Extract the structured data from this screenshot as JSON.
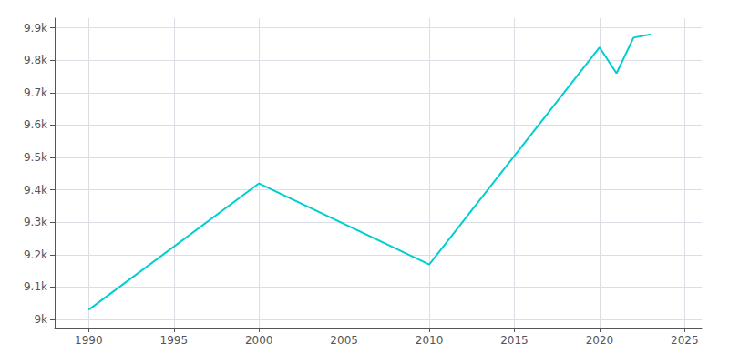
{
  "chart_data": {
    "type": "line",
    "x": [
      1990,
      2000,
      2010,
      2020,
      2021,
      2022,
      2023
    ],
    "values": [
      9030,
      9420,
      9170,
      9840,
      9760,
      9870,
      9880
    ],
    "color": "#00CED1",
    "xlim": [
      1988,
      2026
    ],
    "ylim": [
      8975,
      9930
    ],
    "xticks": [
      1990,
      1995,
      2000,
      2005,
      2010,
      2015,
      2020,
      2025
    ],
    "yticks": [
      {
        "value": 9000,
        "label": "9k"
      },
      {
        "value": 9100,
        "label": "9.1k"
      },
      {
        "value": 9200,
        "label": "9.2k"
      },
      {
        "value": 9300,
        "label": "9.3k"
      },
      {
        "value": 9400,
        "label": "9.4k"
      },
      {
        "value": 9500,
        "label": "9.5k"
      },
      {
        "value": 9600,
        "label": "9.6k"
      },
      {
        "value": 9700,
        "label": "9.7k"
      },
      {
        "value": 9800,
        "label": "9.8k"
      },
      {
        "value": 9900,
        "label": "9.9k"
      }
    ],
    "grid": true
  }
}
